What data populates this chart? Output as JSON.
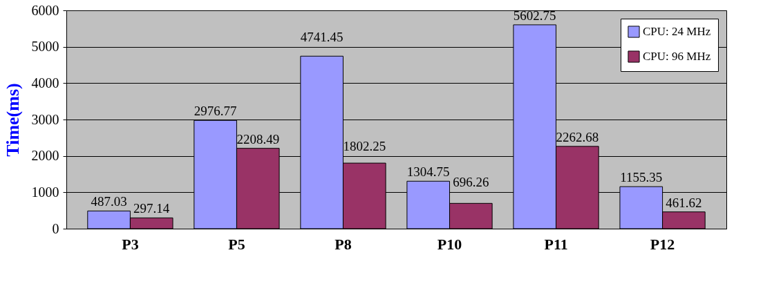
{
  "chart_data": {
    "type": "bar",
    "ylabel": "Time(ms)",
    "categories": [
      "P3",
      "P5",
      "P8",
      "P10",
      "P11",
      "P12"
    ],
    "series": [
      {
        "name": "CPU: 24 MHz",
        "color": "#9999ff",
        "values": [
          487.03,
          2976.77,
          4741.45,
          1304.75,
          5602.75,
          1155.35
        ]
      },
      {
        "name": "CPU: 96 MHz",
        "color": "#993366",
        "values": [
          297.14,
          2208.49,
          1802.25,
          696.26,
          2262.68,
          461.62
        ]
      }
    ],
    "ylim": [
      0,
      6000
    ],
    "yticks": [
      0,
      1000,
      2000,
      3000,
      4000,
      5000,
      6000
    ],
    "grid": "y",
    "legend": "top right",
    "data_labels": true
  }
}
